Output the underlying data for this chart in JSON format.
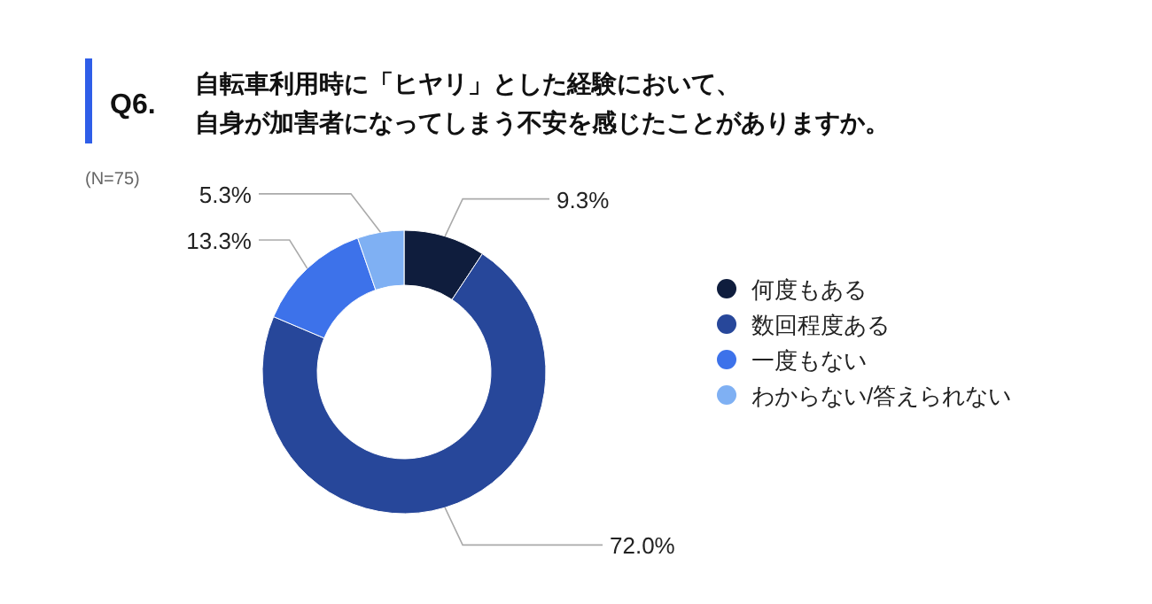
{
  "chart_data": {
    "type": "donut",
    "title": "Q6.",
    "subtitle": [
      "自転車利用時に「ヒヤリ」とした経験において、",
      "自身が加害者になってしまう不安を感じたことがありますか。"
    ],
    "annotations": [
      "(N=75)"
    ],
    "categories": [
      "何度もある",
      "数回程度ある",
      "一度もない",
      "わからない/答えられない"
    ],
    "values": [
      9.3,
      72.0,
      13.3,
      5.3
    ],
    "value_labels": [
      "9.3%",
      "72.0%",
      "13.3%",
      "5.3%"
    ],
    "colors": [
      "#0f1d3d",
      "#27479a",
      "#3d72ea",
      "#7fb0f3"
    ],
    "legend": "right"
  }
}
